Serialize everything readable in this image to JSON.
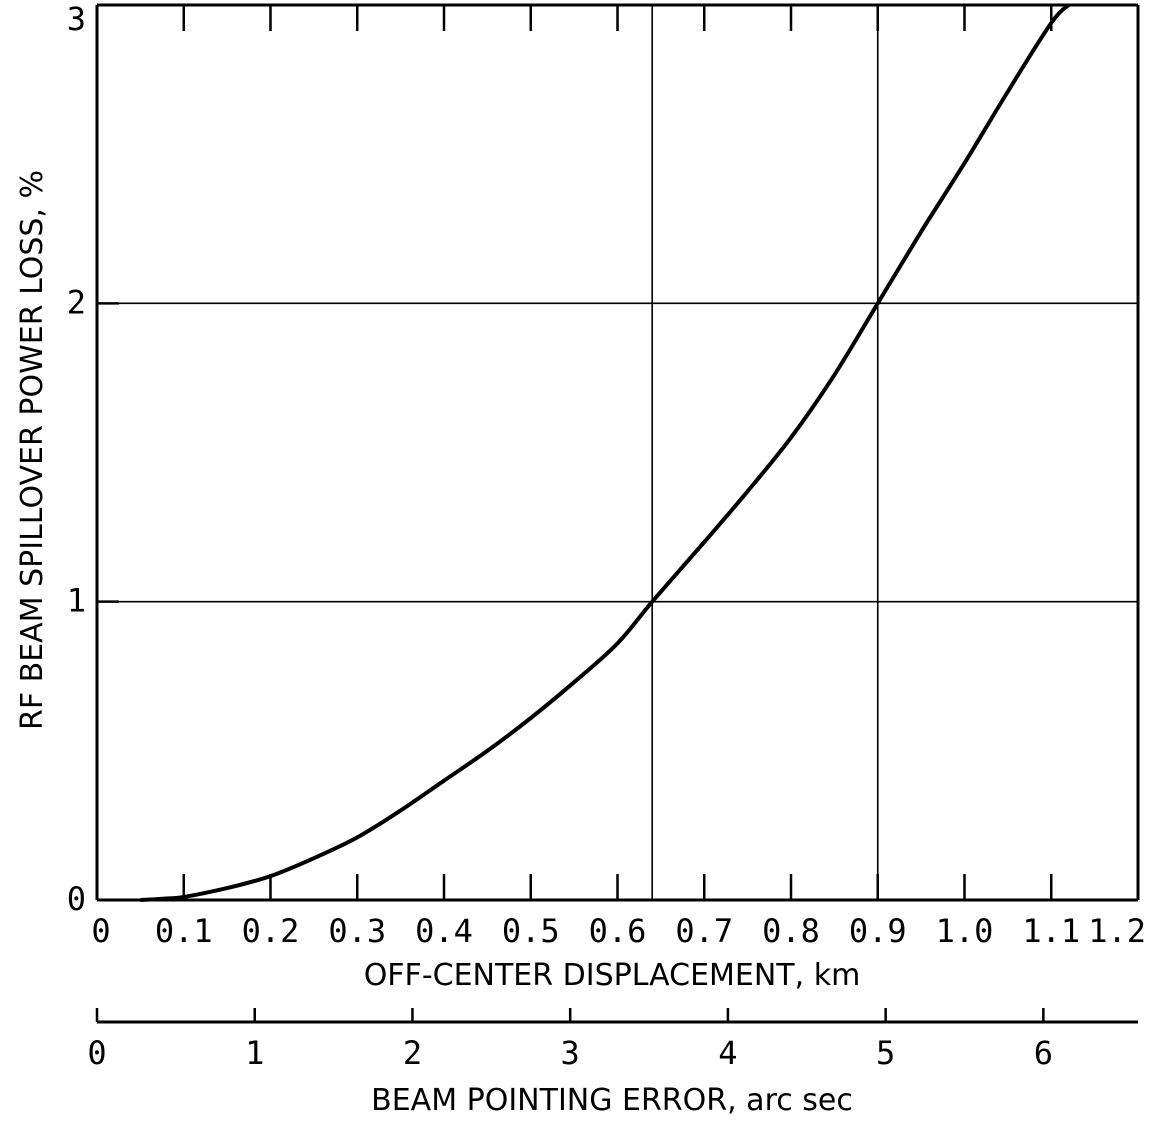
{
  "chart_data": {
    "type": "line",
    "title": "",
    "xlabel": "OFF-CENTER DISPLACEMENT, km",
    "ylabel": "RF BEAM SPILLOVER POWER LOSS, %",
    "x2label": "BEAM POINTING ERROR, arc sec",
    "xlim": [
      0,
      1.2
    ],
    "ylim": [
      0,
      3
    ],
    "x2lim": [
      0,
      6.6
    ],
    "x_ticks": [
      0,
      0.1,
      0.2,
      0.3,
      0.4,
      0.5,
      0.6,
      0.7,
      0.8,
      0.9,
      1.0,
      1.1,
      1.2
    ],
    "x_tick_labels": [
      "0",
      "0.1",
      "0.2",
      "0.3",
      "0.4",
      "0.5",
      "0.6",
      "0.7",
      "0.8",
      "0.9",
      "1.0",
      "1.1",
      "1.2"
    ],
    "y_ticks": [
      0,
      1,
      2,
      3
    ],
    "y_tick_labels": [
      "0",
      "1",
      "2",
      "3"
    ],
    "x2_ticks": [
      0,
      1,
      2,
      3,
      4,
      5,
      6
    ],
    "x2_tick_labels": [
      "0",
      "1",
      "2",
      "3",
      "4",
      "5",
      "6"
    ],
    "grid_x": [
      0.64,
      0.9
    ],
    "grid_y": [
      1,
      2
    ],
    "series": [
      {
        "color": "#000000",
        "x": [
          0.05,
          0.08,
          0.1,
          0.15,
          0.2,
          0.25,
          0.3,
          0.35,
          0.4,
          0.45,
          0.5,
          0.55,
          0.6,
          0.64,
          0.7,
          0.75,
          0.8,
          0.85,
          0.9,
          0.95,
          1.0,
          1.05,
          1.1,
          1.12
        ],
        "y": [
          0.0,
          0.005,
          0.01,
          0.04,
          0.08,
          0.14,
          0.21,
          0.3,
          0.4,
          0.5,
          0.61,
          0.73,
          0.86,
          1.0,
          1.2,
          1.37,
          1.55,
          1.76,
          2.0,
          2.24,
          2.47,
          2.71,
          2.94,
          3.0
        ]
      }
    ]
  }
}
